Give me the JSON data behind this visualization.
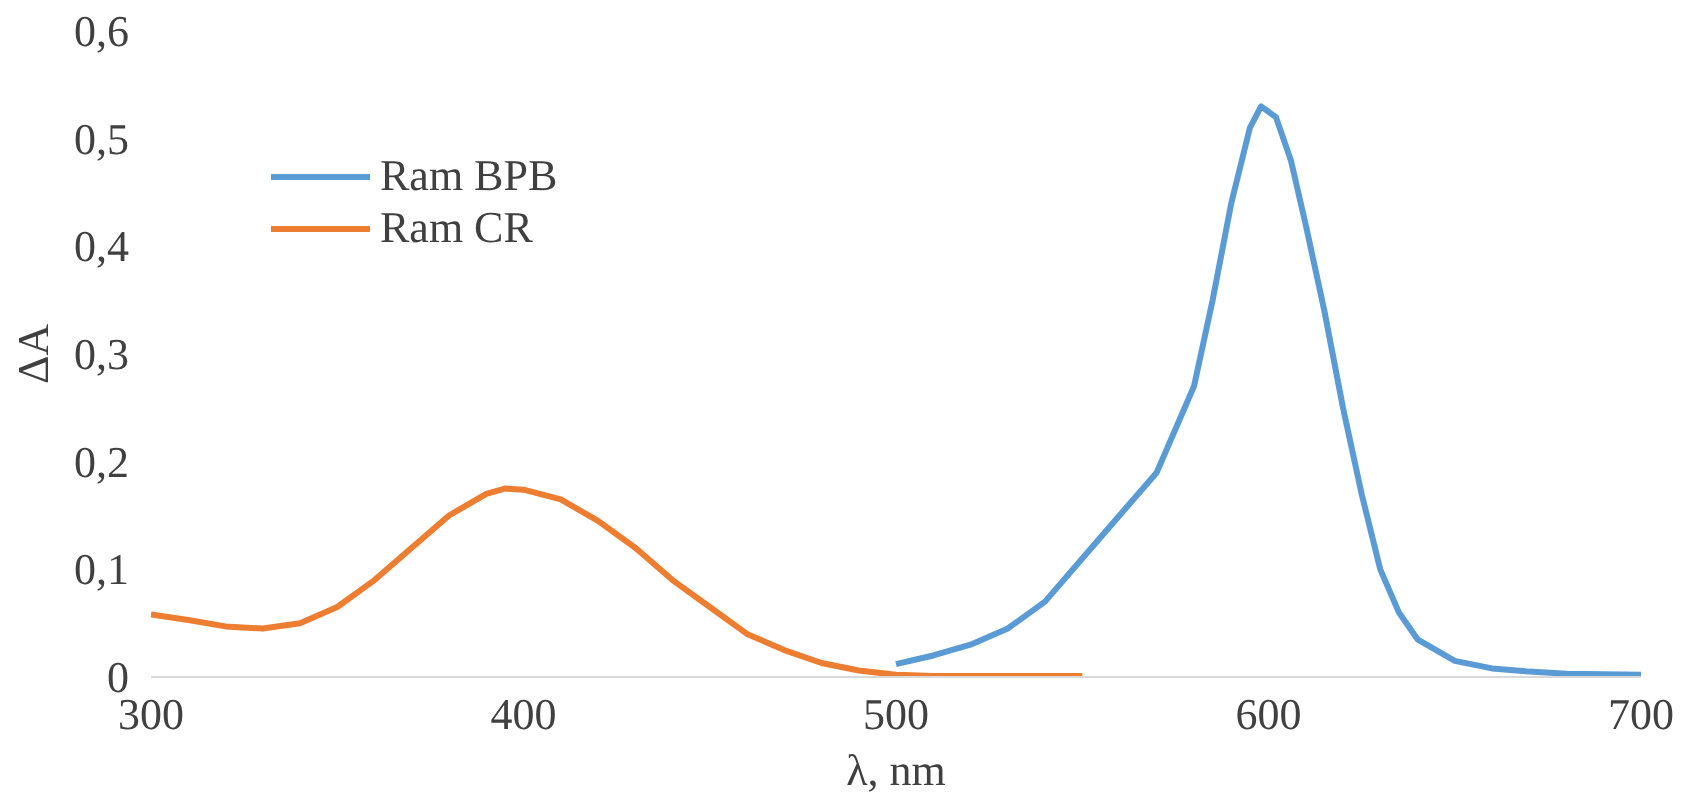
{
  "chart_data": {
    "type": "line",
    "xlabel": "λ, nm",
    "ylabel": "ΔA",
    "xlim": [
      300,
      700
    ],
    "xticks": [
      300,
      400,
      500,
      600,
      700
    ],
    "ylim": [
      0,
      0.6
    ],
    "yticks": [
      0,
      {
        "value": 0.1,
        "label": "0,1"
      },
      {
        "value": 0.2,
        "label": "0,2"
      },
      {
        "value": 0.3,
        "label": "0,3"
      },
      {
        "value": 0.4,
        "label": "0,4"
      },
      {
        "value": 0.5,
        "label": "0,5"
      },
      {
        "value": 0.6,
        "label": "0,6"
      }
    ],
    "grid": false,
    "legend": "top left",
    "line_style": "solid",
    "marker": "none",
    "series": [
      {
        "name": "Ram BPB",
        "color": "#5b9bd5",
        "x": [
          500,
          510,
          520,
          530,
          540,
          550,
          560,
          570,
          580,
          585,
          590,
          595,
          598,
          602,
          606,
          610,
          615,
          620,
          625,
          630,
          635,
          640,
          650,
          660,
          670,
          680,
          700
        ],
        "values": [
          0.012,
          0.02,
          0.03,
          0.045,
          0.07,
          0.11,
          0.15,
          0.19,
          0.27,
          0.35,
          0.44,
          0.51,
          0.53,
          0.52,
          0.48,
          0.42,
          0.34,
          0.25,
          0.17,
          0.1,
          0.06,
          0.035,
          0.015,
          0.008,
          0.005,
          0.003,
          0.002
        ]
      },
      {
        "name": "Ram CR",
        "color": "#ed7d31",
        "x": [
          300,
          310,
          320,
          330,
          340,
          350,
          360,
          370,
          380,
          390,
          395,
          400,
          410,
          420,
          430,
          440,
          450,
          460,
          470,
          480,
          490,
          500,
          510,
          520,
          530,
          540,
          550
        ],
        "values": [
          0.058,
          0.053,
          0.047,
          0.045,
          0.05,
          0.065,
          0.09,
          0.12,
          0.15,
          0.17,
          0.175,
          0.174,
          0.165,
          0.145,
          0.12,
          0.09,
          0.065,
          0.04,
          0.025,
          0.013,
          0.006,
          0.002,
          0.001,
          0.001,
          0.001,
          0.001,
          0.001
        ]
      }
    ]
  }
}
